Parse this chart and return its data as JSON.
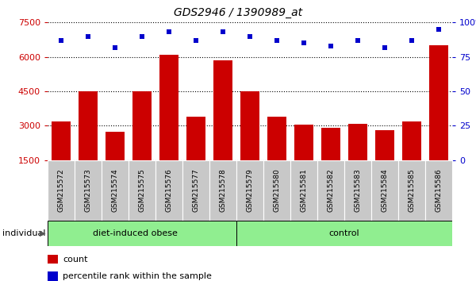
{
  "title": "GDS2946 / 1390989_at",
  "categories": [
    "GSM215572",
    "GSM215573",
    "GSM215574",
    "GSM215575",
    "GSM215576",
    "GSM215577",
    "GSM215578",
    "GSM215579",
    "GSM215580",
    "GSM215581",
    "GSM215582",
    "GSM215583",
    "GSM215584",
    "GSM215585",
    "GSM215586"
  ],
  "bar_values": [
    3200,
    4500,
    2750,
    4500,
    6100,
    3400,
    5850,
    4500,
    3400,
    3050,
    2900,
    3100,
    2800,
    3200,
    6500
  ],
  "scatter_values": [
    87,
    90,
    82,
    90,
    93,
    87,
    93,
    90,
    87,
    85,
    83,
    87,
    82,
    87,
    95
  ],
  "bar_color": "#cc0000",
  "scatter_color": "#0000cc",
  "ylim_left": [
    1500,
    7500
  ],
  "ylim_right": [
    0,
    100
  ],
  "yticks_left": [
    1500,
    3000,
    4500,
    6000,
    7500
  ],
  "yticks_right": [
    0,
    25,
    50,
    75,
    100
  ],
  "group_divider": 7,
  "group1_label": "diet-induced obese",
  "group2_label": "control",
  "group_color": "#90EE90",
  "individual_label": "individual",
  "legend_count_label": "count",
  "legend_pct_label": "percentile rank within the sample",
  "bar_color_red": "#cc0000",
  "scatter_color_blue": "#0000cc",
  "xtick_box_color": "#c8c8c8",
  "fig_bg": "#ffffff",
  "plot_bg": "#ffffff",
  "ytick_left_color": "#cc0000",
  "ytick_right_color": "#0000cc",
  "title_style": "italic"
}
